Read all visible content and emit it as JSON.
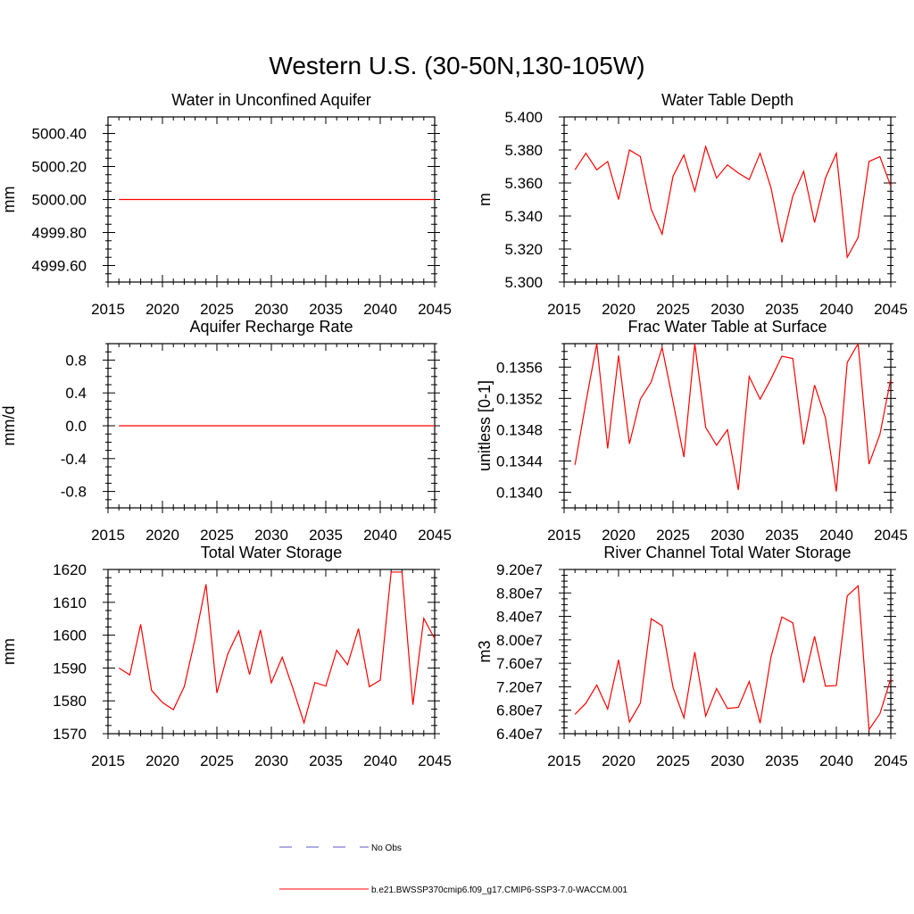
{
  "figure": {
    "title": "Western U.S. (30-50N,130-105W)"
  },
  "legend": {
    "entries": [
      {
        "label": "No Obs",
        "color": "#5a5ac8",
        "style": "dashed"
      },
      {
        "label": "b.e21.BWSSP370cmip6.f09_g17.CMIP6-SSP3-7.0-WACCM.001",
        "color": "#ff0000",
        "style": "solid"
      }
    ]
  },
  "chart_data": [
    {
      "type": "line",
      "title": "Water in Unconfined Aquifer",
      "ylabel": "mm",
      "xlabel": "",
      "xlim": [
        2015,
        2045
      ],
      "ylim": [
        4999.5,
        5000.5
      ],
      "xticks": [
        2015,
        2020,
        2025,
        2030,
        2035,
        2040,
        2045
      ],
      "yticks": [
        4999.6,
        4999.8,
        5000.0,
        5000.2,
        5000.4
      ],
      "yticklabels": [
        "4999.60",
        "4999.80",
        "5000.00",
        "5000.20",
        "5000.40"
      ],
      "ytop_frame": false,
      "series": [
        {
          "color": "#ff0000",
          "x": [
            2016,
            2045
          ],
          "values": [
            5000.0,
            5000.0
          ]
        }
      ]
    },
    {
      "type": "line",
      "title": "Water Table Depth",
      "ylabel": "m",
      "xlabel": "",
      "xlim": [
        2015,
        2045
      ],
      "ylim": [
        5.3,
        5.4
      ],
      "xticks": [
        2015,
        2020,
        2025,
        2030,
        2035,
        2040,
        2045
      ],
      "yticks": [
        5.3,
        5.32,
        5.34,
        5.36,
        5.38,
        5.4
      ],
      "yticklabels": [
        "5.300",
        "5.320",
        "5.340",
        "5.360",
        "5.380",
        "5.400"
      ],
      "ytop_frame": true,
      "series": [
        {
          "color": "#ff0000",
          "x": [
            2016,
            2017,
            2018,
            2019,
            2020,
            2021,
            2022,
            2023,
            2024,
            2025,
            2026,
            2027,
            2028,
            2029,
            2030,
            2031,
            2032,
            2033,
            2034,
            2035,
            2036,
            2037,
            2038,
            2039,
            2040,
            2041,
            2042,
            2043,
            2044,
            2045
          ],
          "values": [
            5.368,
            5.378,
            5.368,
            5.373,
            5.35,
            5.38,
            5.376,
            5.344,
            5.329,
            5.364,
            5.377,
            5.355,
            5.382,
            5.363,
            5.371,
            5.366,
            5.362,
            5.378,
            5.357,
            5.324,
            5.352,
            5.367,
            5.336,
            5.363,
            5.378,
            5.315,
            5.327,
            5.373,
            5.376,
            5.358
          ]
        }
      ]
    },
    {
      "type": "line",
      "title": "Aquifer Recharge Rate",
      "ylabel": "mm/d",
      "xlabel": "",
      "xlim": [
        2015,
        2045
      ],
      "ylim": [
        -1.0,
        1.0
      ],
      "xticks": [
        2015,
        2020,
        2025,
        2030,
        2035,
        2040,
        2045
      ],
      "yticks": [
        -0.8,
        -0.4,
        0.0,
        0.4,
        0.8
      ],
      "yticklabels": [
        "-0.8",
        "-0.4",
        "0.0",
        "0.4",
        "0.8"
      ],
      "ytop_frame": false,
      "series": [
        {
          "color": "#ff0000",
          "x": [
            2016,
            2045
          ],
          "values": [
            0.0,
            0.0
          ]
        }
      ]
    },
    {
      "type": "line",
      "title": "Frac Water Table at Surface",
      "ylabel": "unitless [0-1]",
      "xlabel": "",
      "xlim": [
        2015,
        2045
      ],
      "ylim": [
        0.1338,
        0.1359
      ],
      "xticks": [
        2015,
        2020,
        2025,
        2030,
        2035,
        2040,
        2045
      ],
      "yticks": [
        0.134,
        0.1344,
        0.1348,
        0.1352,
        0.1356
      ],
      "yticklabels": [
        "0.1340",
        "0.1344",
        "0.1348",
        "0.1352",
        "0.1356"
      ],
      "ytop_frame": true,
      "series": [
        {
          "color": "#ff0000",
          "x": [
            2016,
            2017,
            2018,
            2019,
            2020,
            2021,
            2022,
            2023,
            2024,
            2025,
            2026,
            2027,
            2028,
            2029,
            2030,
            2031,
            2032,
            2033,
            2034,
            2035,
            2036,
            2037,
            2038,
            2039,
            2040,
            2041,
            2042,
            2043,
            2044,
            2045
          ],
          "values": [
            0.13435,
            0.13515,
            0.1359,
            0.13456,
            0.13575,
            0.13462,
            0.13519,
            0.13541,
            0.13585,
            0.13516,
            0.13445,
            0.1359,
            0.13483,
            0.1346,
            0.1348,
            0.13403,
            0.13548,
            0.13519,
            0.13545,
            0.13574,
            0.13571,
            0.13461,
            0.13537,
            0.13495,
            0.13401,
            0.13566,
            0.1359,
            0.13436,
            0.13474,
            0.13545
          ]
        }
      ]
    },
    {
      "type": "line",
      "title": "Total Water Storage",
      "ylabel": "mm",
      "xlabel": "",
      "xlim": [
        2015,
        2045
      ],
      "ylim": [
        1570,
        1620
      ],
      "xticks": [
        2015,
        2020,
        2025,
        2030,
        2035,
        2040,
        2045
      ],
      "yticks": [
        1570,
        1580,
        1590,
        1600,
        1610,
        1620
      ],
      "yticklabels": [
        "1570",
        "1580",
        "1590",
        "1600",
        "1610",
        "1620"
      ],
      "ytop_frame": false,
      "series": [
        {
          "color": "#ff0000",
          "x": [
            2016,
            2017,
            2018,
            2019,
            2020,
            2021,
            2022,
            2023,
            2024,
            2025,
            2026,
            2027,
            2028,
            2029,
            2030,
            2031,
            2032,
            2033,
            2034,
            2035,
            2036,
            2037,
            2038,
            2039,
            2040,
            2041,
            2042,
            2043,
            2044,
            2045
          ],
          "values": [
            1590.0,
            1587.9,
            1603.3,
            1583.2,
            1579.5,
            1577.3,
            1584.3,
            1598.9,
            1615.5,
            1582.4,
            1594.3,
            1601.3,
            1588.0,
            1601.6,
            1585.5,
            1593.3,
            1583.6,
            1573.3,
            1585.6,
            1584.5,
            1595.4,
            1591.0,
            1602.0,
            1584.3,
            1586.3,
            1619.2,
            1619.2,
            1578.8,
            1605.1,
            1598.9
          ]
        }
      ]
    },
    {
      "type": "line",
      "title": "River Channel Total Water Storage",
      "ylabel": "m3",
      "xlabel": "",
      "xlim": [
        2015,
        2045
      ],
      "ylim": [
        64000000,
        92000000
      ],
      "xticks": [
        2015,
        2020,
        2025,
        2030,
        2035,
        2040,
        2045
      ],
      "yticks": [
        64000000,
        68000000,
        72000000,
        76000000,
        80000000,
        84000000,
        88000000,
        92000000
      ],
      "yticklabels": [
        "6.40e7",
        "6.80e7",
        "7.20e7",
        "7.60e7",
        "8.00e7",
        "8.40e7",
        "8.80e7",
        "9.20e7"
      ],
      "ytop_frame": true,
      "series": [
        {
          "color": "#ff0000",
          "x": [
            2016,
            2017,
            2018,
            2019,
            2020,
            2021,
            2022,
            2023,
            2024,
            2025,
            2026,
            2027,
            2028,
            2029,
            2030,
            2031,
            2032,
            2033,
            2034,
            2035,
            2036,
            2037,
            2038,
            2039,
            2040,
            2041,
            2042,
            2043,
            2044,
            2045
          ],
          "values": [
            67300000,
            69200000,
            72300000,
            68200000,
            76600000,
            66000000,
            69200000,
            83600000,
            82400000,
            71900000,
            66700000,
            77900000,
            67000000,
            71700000,
            68300000,
            68500000,
            72900000,
            65800000,
            77100000,
            83900000,
            82900000,
            72700000,
            80600000,
            72100000,
            72200000,
            87500000,
            89200000,
            64700000,
            67400000,
            73400000
          ]
        }
      ]
    }
  ]
}
